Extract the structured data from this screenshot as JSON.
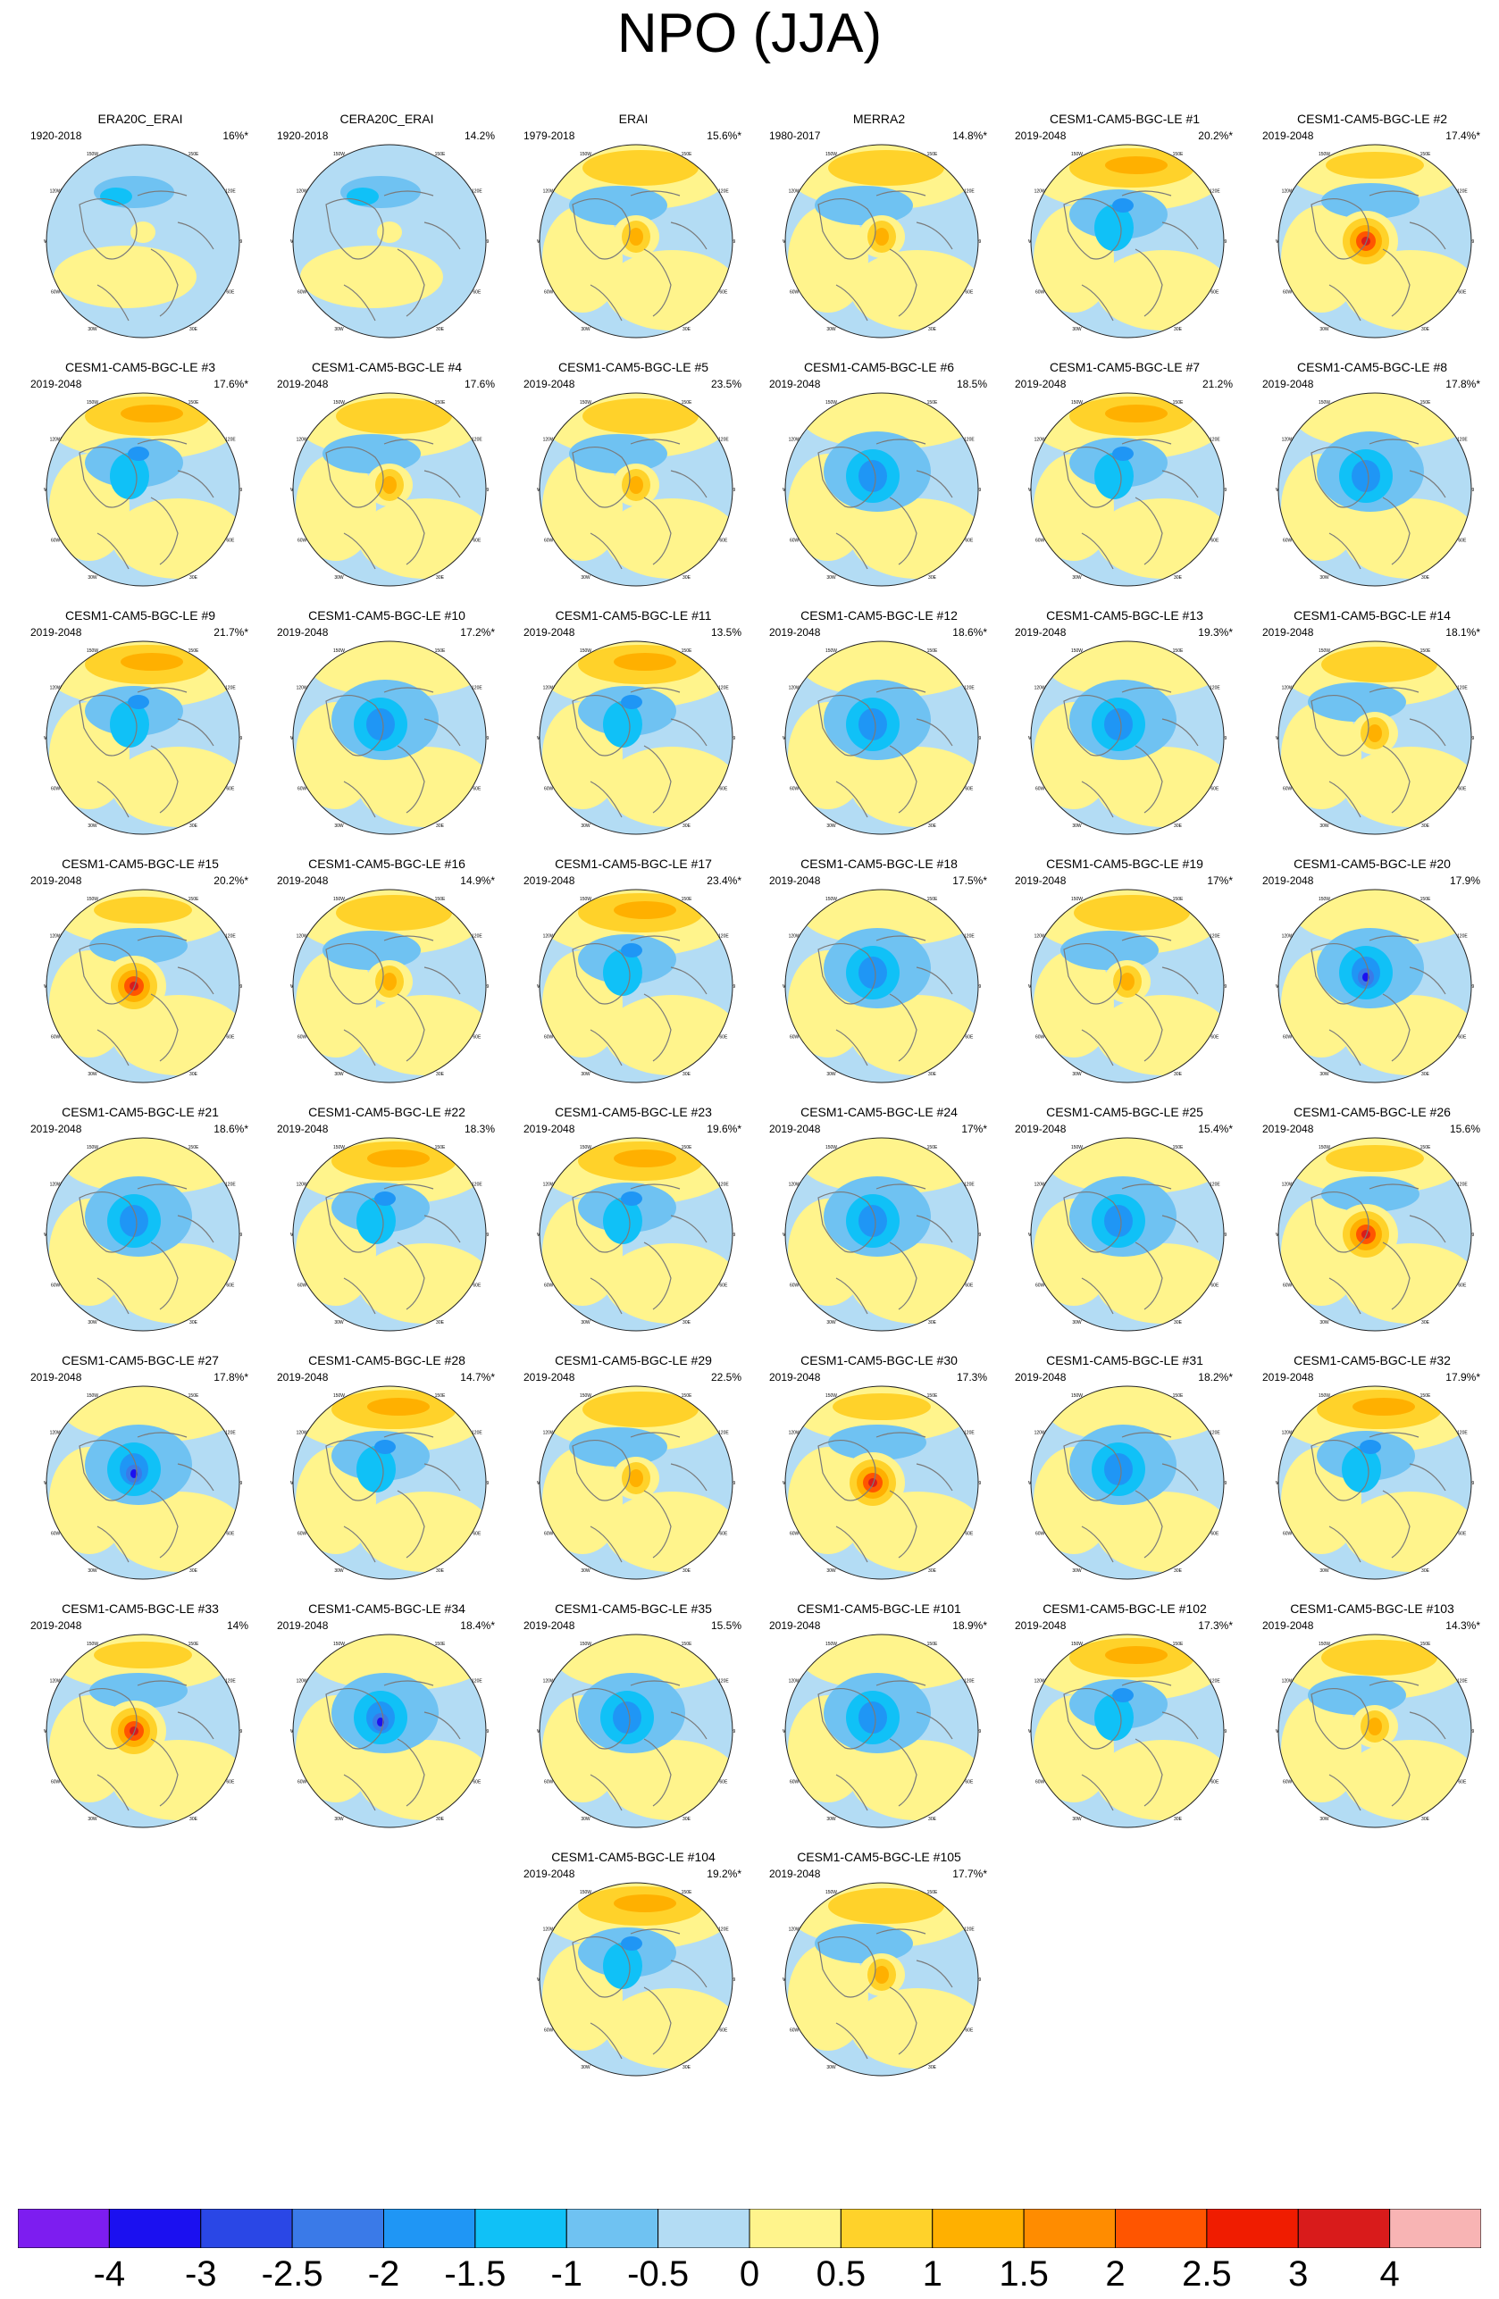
{
  "title": "NPO (JJA)",
  "colorbar": {
    "colors": [
      "#7d1df0",
      "#1b10f0",
      "#2a47e6",
      "#3a7ae8",
      "#1f96f5",
      "#10c1f7",
      "#6fc2f2",
      "#b3dcf4",
      "#fff48c",
      "#ffd22a",
      "#ffb000",
      "#ff8c00",
      "#ff5500",
      "#f01c00",
      "#d91b1b",
      "#f8b4b4"
    ],
    "labels": [
      "-4",
      "-3",
      "-2.5",
      "-2",
      "-1.5",
      "-1",
      "-0.5",
      "0",
      "0.5",
      "1",
      "1.5",
      "2",
      "2.5",
      "3",
      "4"
    ]
  },
  "lon_labels": [
    "180",
    "150E",
    "120E",
    "90E",
    "60E",
    "30E",
    "0",
    "30W",
    "60W",
    "90W",
    "120W",
    "150W"
  ],
  "panels": [
    {
      "title": "ERA20C_ERAI",
      "period": "1920-2018",
      "var": "16%*",
      "pattern": "reanalysis"
    },
    {
      "title": "CERA20C_ERAI",
      "period": "1920-2018",
      "var": "14.2%",
      "pattern": "reanalysis"
    },
    {
      "title": "ERAI",
      "period": "1979-2018",
      "var": "15.6%*",
      "pattern": "pos-center"
    },
    {
      "title": "MERRA2",
      "period": "1980-2017",
      "var": "14.8%*",
      "pattern": "pos-center"
    },
    {
      "title": "CESM1-CAM5-BGC-LE #1",
      "period": "2019-2048",
      "var": "20.2%*",
      "pattern": "pos-band"
    },
    {
      "title": "CESM1-CAM5-BGC-LE #2",
      "period": "2019-2048",
      "var": "17.4%*",
      "pattern": "strong-pos"
    },
    {
      "title": "CESM1-CAM5-BGC-LE #3",
      "period": "2019-2048",
      "var": "17.6%*",
      "pattern": "pos-band"
    },
    {
      "title": "CESM1-CAM5-BGC-LE #4",
      "period": "2019-2048",
      "var": "17.6%",
      "pattern": "pos-center"
    },
    {
      "title": "CESM1-CAM5-BGC-LE #5",
      "period": "2019-2048",
      "var": "23.5%",
      "pattern": "pos-center"
    },
    {
      "title": "CESM1-CAM5-BGC-LE #6",
      "period": "2019-2048",
      "var": "18.5%",
      "pattern": "neg-center"
    },
    {
      "title": "CESM1-CAM5-BGC-LE #7",
      "period": "2019-2048",
      "var": "21.2%",
      "pattern": "pos-band"
    },
    {
      "title": "CESM1-CAM5-BGC-LE #8",
      "period": "2019-2048",
      "var": "17.8%*",
      "pattern": "neg-center"
    },
    {
      "title": "CESM1-CAM5-BGC-LE #9",
      "period": "2019-2048",
      "var": "21.7%*",
      "pattern": "pos-band"
    },
    {
      "title": "CESM1-CAM5-BGC-LE #10",
      "period": "2019-2048",
      "var": "17.2%*",
      "pattern": "neg-center"
    },
    {
      "title": "CESM1-CAM5-BGC-LE #11",
      "period": "2019-2048",
      "var": "13.5%",
      "pattern": "pos-band"
    },
    {
      "title": "CESM1-CAM5-BGC-LE #12",
      "period": "2019-2048",
      "var": "18.6%*",
      "pattern": "neg-center"
    },
    {
      "title": "CESM1-CAM5-BGC-LE #13",
      "period": "2019-2048",
      "var": "19.3%*",
      "pattern": "neg-center"
    },
    {
      "title": "CESM1-CAM5-BGC-LE #14",
      "period": "2019-2048",
      "var": "18.1%*",
      "pattern": "pos-center"
    },
    {
      "title": "CESM1-CAM5-BGC-LE #15",
      "period": "2019-2048",
      "var": "20.2%*",
      "pattern": "strong-pos"
    },
    {
      "title": "CESM1-CAM5-BGC-LE #16",
      "period": "2019-2048",
      "var": "14.9%*",
      "pattern": "pos-center"
    },
    {
      "title": "CESM1-CAM5-BGC-LE #17",
      "period": "2019-2048",
      "var": "23.4%*",
      "pattern": "pos-band"
    },
    {
      "title": "CESM1-CAM5-BGC-LE #18",
      "period": "2019-2048",
      "var": "17.5%*",
      "pattern": "neg-center"
    },
    {
      "title": "CESM1-CAM5-BGC-LE #19",
      "period": "2019-2048",
      "var": "17%*",
      "pattern": "pos-center"
    },
    {
      "title": "CESM1-CAM5-BGC-LE #20",
      "period": "2019-2048",
      "var": "17.9%",
      "pattern": "neg-strong"
    },
    {
      "title": "CESM1-CAM5-BGC-LE #21",
      "period": "2019-2048",
      "var": "18.6%*",
      "pattern": "neg-center"
    },
    {
      "title": "CESM1-CAM5-BGC-LE #22",
      "period": "2019-2048",
      "var": "18.3%",
      "pattern": "pos-band"
    },
    {
      "title": "CESM1-CAM5-BGC-LE #23",
      "period": "2019-2048",
      "var": "19.6%*",
      "pattern": "pos-band"
    },
    {
      "title": "CESM1-CAM5-BGC-LE #24",
      "period": "2019-2048",
      "var": "17%*",
      "pattern": "neg-center"
    },
    {
      "title": "CESM1-CAM5-BGC-LE #25",
      "period": "2019-2048",
      "var": "15.4%*",
      "pattern": "neg-center"
    },
    {
      "title": "CESM1-CAM5-BGC-LE #26",
      "period": "2019-2048",
      "var": "15.6%",
      "pattern": "strong-pos"
    },
    {
      "title": "CESM1-CAM5-BGC-LE #27",
      "period": "2019-2048",
      "var": "17.8%*",
      "pattern": "neg-strong"
    },
    {
      "title": "CESM1-CAM5-BGC-LE #28",
      "period": "2019-2048",
      "var": "14.7%*",
      "pattern": "pos-band"
    },
    {
      "title": "CESM1-CAM5-BGC-LE #29",
      "period": "2019-2048",
      "var": "22.5%",
      "pattern": "pos-center"
    },
    {
      "title": "CESM1-CAM5-BGC-LE #30",
      "period": "2019-2048",
      "var": "17.3%",
      "pattern": "strong-pos"
    },
    {
      "title": "CESM1-CAM5-BGC-LE #31",
      "period": "2019-2048",
      "var": "18.2%*",
      "pattern": "neg-center"
    },
    {
      "title": "CESM1-CAM5-BGC-LE #32",
      "period": "2019-2048",
      "var": "17.9%*",
      "pattern": "pos-band"
    },
    {
      "title": "CESM1-CAM5-BGC-LE #33",
      "period": "2019-2048",
      "var": "14%",
      "pattern": "strong-pos"
    },
    {
      "title": "CESM1-CAM5-BGC-LE #34",
      "period": "2019-2048",
      "var": "18.4%*",
      "pattern": "neg-strong"
    },
    {
      "title": "CESM1-CAM5-BGC-LE #35",
      "period": "2019-2048",
      "var": "15.5%",
      "pattern": "neg-center"
    },
    {
      "title": "CESM1-CAM5-BGC-LE #101",
      "period": "2019-2048",
      "var": "18.9%*",
      "pattern": "neg-center"
    },
    {
      "title": "CESM1-CAM5-BGC-LE #102",
      "period": "2019-2048",
      "var": "17.3%*",
      "pattern": "pos-band"
    },
    {
      "title": "CESM1-CAM5-BGC-LE #103",
      "period": "2019-2048",
      "var": "14.3%*",
      "pattern": "pos-center"
    },
    {
      "title": "CESM1-CAM5-BGC-LE #104",
      "period": "2019-2048",
      "var": "19.2%*",
      "pattern": "pos-band"
    },
    {
      "title": "CESM1-CAM5-BGC-LE #105",
      "period": "2019-2048",
      "var": "17.7%*",
      "pattern": "pos-center"
    }
  ]
}
